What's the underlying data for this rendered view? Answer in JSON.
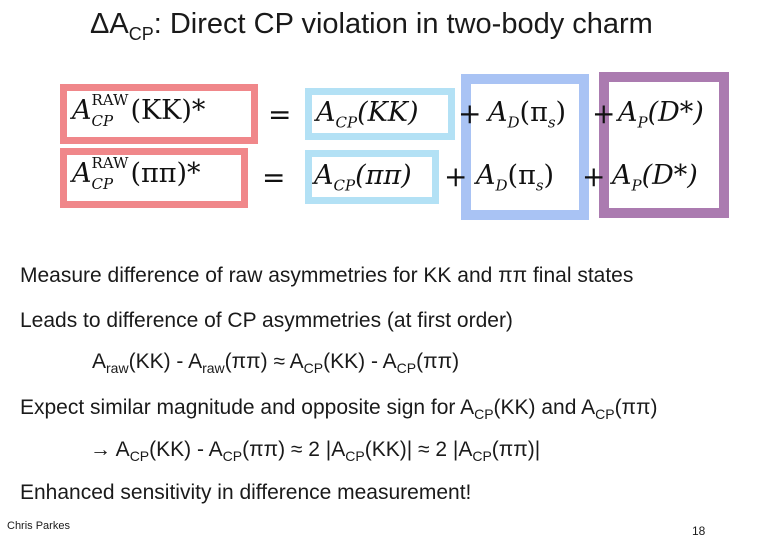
{
  "slide": {
    "title_prefix": "ΔA",
    "title_sub": "CP",
    "title_rest": ": Direct CP violation in two-body charm"
  },
  "equations": {
    "row1": {
      "lhs_base": "A",
      "lhs_sup": "RAW",
      "lhs_sub": "CP",
      "lhs_arg": "(KK)*",
      "equals": "=",
      "term1": "A",
      "term1_sub": "CP",
      "term1_arg": "(KK)",
      "plus1": "+",
      "term2": "A",
      "term2_sub": "D",
      "term2_arg": "(π",
      "term2_arg_sub": "s",
      "term2_arg_end": ")",
      "plus2": "+",
      "term3": "A",
      "term3_sub": "P",
      "term3_arg": "(D*)"
    },
    "row2": {
      "lhs_base": "A",
      "lhs_sup": "RAW",
      "lhs_sub": "CP",
      "lhs_arg": "(ππ)*",
      "equals": "=",
      "term1": "A",
      "term1_sub": "CP",
      "term1_arg": "(ππ)",
      "plus1": "+",
      "term2": "A",
      "term2_sub": "D",
      "term2_arg": "(π",
      "term2_arg_sub": "s",
      "term2_arg_end": ")",
      "plus2": "+",
      "term3": "A",
      "term3_sub": "P",
      "term3_arg": "(D*)"
    }
  },
  "bullets": {
    "b1": "Measure difference of raw asymmetries for KK and ππ final states",
    "b2": "Leads to difference of CP asymmetries (at first order)",
    "b3": {
      "p1": "A",
      "s1": "raw",
      "p2": "(KK) - A",
      "s2": "raw",
      "p3": "(ππ) ≈ A",
      "s3": "CP",
      "p4": "(KK) - A",
      "s4": "CP",
      "p5": "(ππ)"
    },
    "b4": {
      "p1": "Expect similar magnitude and opposite sign for A",
      "s1": "CP",
      "p2": "(KK) and A",
      "s2": "CP",
      "p3": "(ππ)"
    },
    "b5": {
      "p1": "→ A",
      "s1": "CP",
      "p2": "(KK) - A",
      "s2": "CP",
      "p3": "(ππ) ≈ 2 |A",
      "s3": "CP",
      "p4": "(KK)| ≈ 2 |A",
      "s4": "CP",
      "p5": "(ππ)|"
    },
    "b6": "Enhanced sensitivity in difference measurement!"
  },
  "footer": {
    "author": "Chris Parkes",
    "page_number": "18"
  },
  "colors": {
    "red_box": "#f0878a",
    "lightblue_box": "#b3e1f5",
    "blue_box": "#a9c3f4",
    "purple_box": "#ab7bb0"
  }
}
